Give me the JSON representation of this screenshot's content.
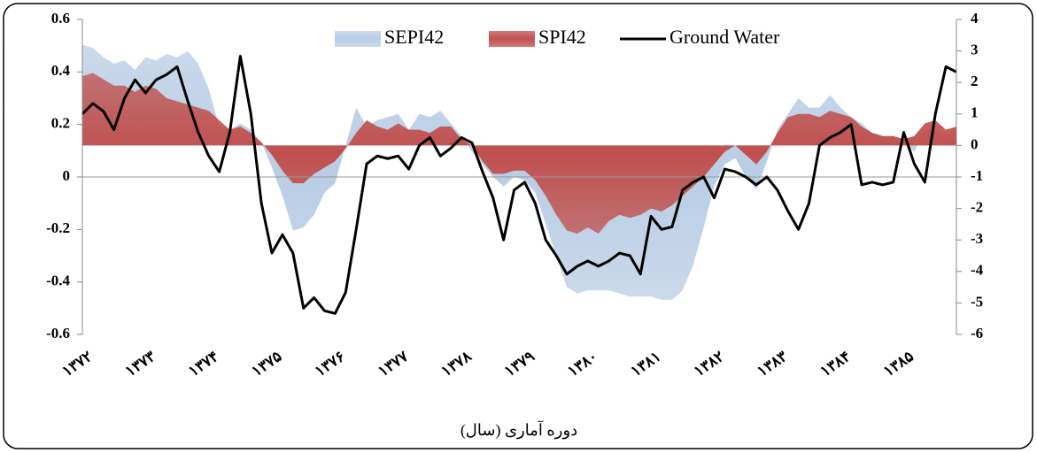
{
  "chart_data": {
    "type": "area-line",
    "legend": "top",
    "x_label": "دوره آماری (سال)",
    "categories": [
      "۱۳۷۲",
      null,
      null,
      null,
      null,
      null,
      "۱۳۷۳",
      null,
      null,
      null,
      null,
      null,
      "۱۳۷۴",
      null,
      null,
      null,
      null,
      null,
      "۱۳۷۵",
      null,
      null,
      null,
      null,
      null,
      "۱۳۷۶",
      null,
      null,
      null,
      null,
      null,
      "۱۳۷۷",
      null,
      null,
      null,
      null,
      null,
      "۱۳۷۸",
      null,
      null,
      null,
      null,
      null,
      "۱۳۷۹",
      null,
      null,
      null,
      null,
      null,
      "۱۳۸۰",
      null,
      null,
      null,
      null,
      null,
      "۱۳۸۱",
      null,
      null,
      null,
      null,
      null,
      "۱۳۸۲",
      null,
      null,
      null,
      null,
      null,
      "۱۳۸۳",
      null,
      null,
      null,
      null,
      null,
      "۱۳۸۴",
      null,
      null,
      null,
      null,
      null,
      "۱۳۸۵",
      null,
      null,
      null,
      null,
      null
    ],
    "ylim": [
      -0.6,
      0.6
    ],
    "yticks": [
      -0.6,
      -0.4,
      -0.2,
      0,
      0.2,
      0.4,
      0.6
    ],
    "y2lim": [
      -6,
      4
    ],
    "y2ticks": [
      -6,
      -5,
      -4,
      -3,
      -2,
      -1,
      0,
      1,
      2,
      3,
      4
    ],
    "series": [
      {
        "name": "SEPI42",
        "kind": "area",
        "axis": "y2",
        "color": "#b9cde5",
        "values": [
          3.2,
          3.1,
          2.8,
          2.6,
          2.7,
          2.4,
          2.8,
          2.7,
          2.9,
          2.8,
          3.0,
          2.6,
          1.8,
          0.6,
          0.5,
          0.7,
          0.5,
          0.1,
          -0.7,
          -1.6,
          -2.7,
          -2.6,
          -2.2,
          -1.5,
          -1.2,
          0.0,
          1.2,
          0.6,
          0.8,
          0.9,
          1.0,
          0.5,
          1.0,
          0.9,
          1.1,
          0.7,
          0.3,
          -0.2,
          -0.6,
          -1.0,
          -1.3,
          -1.0,
          -1.1,
          -1.5,
          -2.5,
          -3.5,
          -4.5,
          -4.7,
          -4.6,
          -4.6,
          -4.6,
          -4.7,
          -4.8,
          -4.8,
          -4.8,
          -4.9,
          -4.9,
          -4.6,
          -3.8,
          -2.6,
          -1.3,
          -0.6,
          -0.4,
          -1.0,
          -1.4,
          -0.5,
          0.5,
          1.0,
          1.5,
          1.2,
          1.2,
          1.6,
          1.2,
          0.9,
          0.7,
          0.4,
          0.3,
          0.1,
          0.1,
          -0.2,
          0.5,
          0.5,
          0.3,
          0.2
        ]
      },
      {
        "name": "SPI42",
        "kind": "area",
        "axis": "y2",
        "color": "#c0504d",
        "values": [
          2.2,
          2.3,
          2.1,
          1.9,
          1.9,
          1.7,
          1.9,
          1.8,
          1.5,
          1.4,
          1.3,
          1.2,
          1.1,
          0.8,
          0.5,
          0.6,
          0.4,
          0.1,
          -0.3,
          -0.8,
          -1.2,
          -1.2,
          -0.9,
          -0.7,
          -0.5,
          -0.1,
          0.4,
          0.8,
          0.6,
          0.5,
          0.7,
          0.5,
          0.5,
          0.4,
          0.6,
          0.6,
          0.2,
          0.0,
          -0.5,
          -0.9,
          -0.9,
          -0.8,
          -0.8,
          -1.1,
          -1.6,
          -2.2,
          -2.7,
          -2.8,
          -2.6,
          -2.8,
          -2.4,
          -2.2,
          -2.3,
          -2.2,
          -2.0,
          -2.1,
          -1.9,
          -1.6,
          -1.3,
          -1.0,
          -0.6,
          -0.2,
          0.0,
          -0.3,
          -0.6,
          -0.2,
          0.4,
          0.9,
          1.0,
          1.0,
          0.9,
          1.1,
          1.0,
          0.9,
          0.6,
          0.4,
          0.3,
          0.3,
          0.2,
          0.3,
          0.7,
          0.8,
          0.5,
          0.6
        ]
      },
      {
        "name": "Ground Water",
        "kind": "line",
        "color": "#000000",
        "values": [
          0.24,
          0.28,
          0.25,
          0.18,
          0.3,
          0.37,
          0.32,
          0.37,
          0.39,
          0.42,
          0.29,
          0.17,
          0.08,
          0.02,
          0.17,
          0.46,
          0.24,
          -0.1,
          -0.29,
          -0.22,
          -0.29,
          -0.5,
          -0.46,
          -0.51,
          -0.52,
          -0.44,
          -0.2,
          0.05,
          0.08,
          0.07,
          0.08,
          0.03,
          0.12,
          0.15,
          0.08,
          0.11,
          0.15,
          0.13,
          0.02,
          -0.08,
          -0.24,
          -0.05,
          -0.02,
          -0.1,
          -0.24,
          -0.3,
          -0.37,
          -0.34,
          -0.32,
          -0.34,
          -0.32,
          -0.29,
          -0.3,
          -0.37,
          -0.15,
          -0.2,
          -0.19,
          -0.05,
          -0.02,
          0.0,
          -0.08,
          0.03,
          0.02,
          0.0,
          -0.03,
          0.0,
          -0.05,
          -0.13,
          -0.2,
          -0.1,
          0.12,
          0.15,
          0.17,
          0.2,
          -0.03,
          -0.02,
          -0.03,
          -0.02,
          0.17,
          0.05,
          -0.02,
          0.24,
          0.42,
          0.4
        ]
      }
    ]
  }
}
